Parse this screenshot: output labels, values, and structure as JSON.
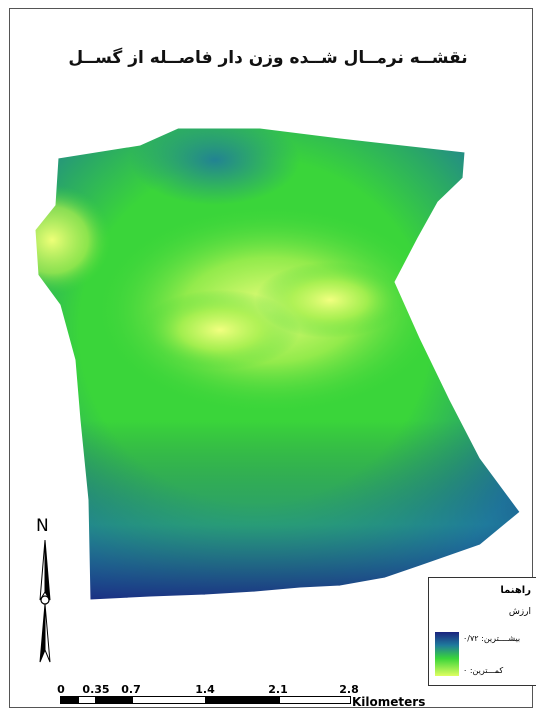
{
  "map": {
    "title": "نقشــه نرمــال شــده وزن دار فاصــله از گســل"
  },
  "north_arrow": {
    "label": "N",
    "icon": "north-arrow-icon"
  },
  "legend": {
    "title": "راهنما",
    "field": "ارزش",
    "high_label": "بیشــــترین: ۰/۷۲",
    "low_label": "کمـــترین: ۰",
    "ramp_colors": [
      "#1a237e",
      "#1f7a9c",
      "#3ad53a",
      "#dfff60"
    ]
  },
  "scale_bar": {
    "unit": "Kilometers",
    "labels": [
      "0",
      "0.35",
      "0.7",
      "1.4",
      "2.1",
      "2.8"
    ]
  },
  "colors": {
    "low": "#dfff60",
    "mid": "#3ad53a",
    "high": "#1a237e"
  }
}
